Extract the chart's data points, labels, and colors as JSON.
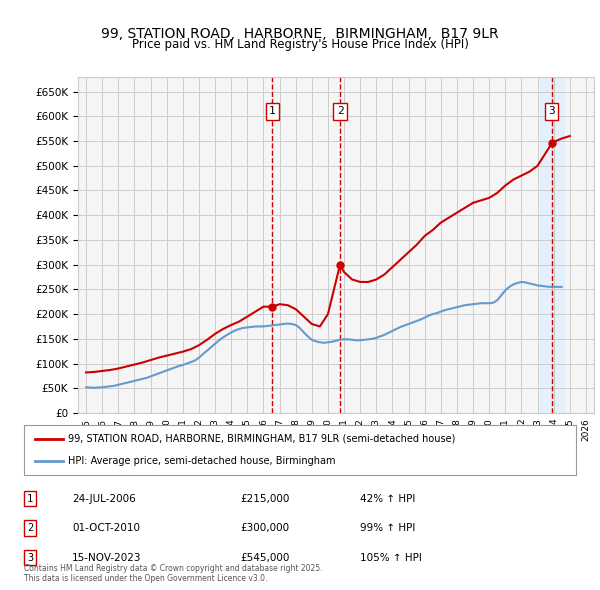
{
  "title": "99, STATION ROAD,  HARBORNE,  BIRMINGHAM,  B17 9LR",
  "subtitle": "Price paid vs. HM Land Registry's House Price Index (HPI)",
  "legend_line1": "99, STATION ROAD, HARBORNE, BIRMINGHAM, B17 9LR (semi-detached house)",
  "legend_line2": "HPI: Average price, semi-detached house, Birmingham",
  "footer": "Contains HM Land Registry data © Crown copyright and database right 2025.\nThis data is licensed under the Open Government Licence v3.0.",
  "transactions": [
    {
      "num": 1,
      "date": "24-JUL-2006",
      "price": 215000,
      "pct": "42%",
      "dir": "↑",
      "label": "HPI"
    },
    {
      "num": 2,
      "date": "01-OCT-2010",
      "price": 300000,
      "pct": "99%",
      "dir": "↑",
      "label": "HPI"
    },
    {
      "num": 3,
      "date": "15-NOV-2023",
      "price": 545000,
      "pct": "105%",
      "dir": "↑",
      "label": "HPI"
    }
  ],
  "transaction_years": [
    2006.56,
    2010.75,
    2023.88
  ],
  "transaction_prices": [
    215000,
    300000,
    545000
  ],
  "ylim": [
    0,
    680000
  ],
  "xlim": [
    1994.5,
    2026.5
  ],
  "yticks": [
    0,
    50000,
    100000,
    150000,
    200000,
    250000,
    300000,
    350000,
    400000,
    450000,
    500000,
    550000,
    600000,
    650000
  ],
  "xticks": [
    1995,
    1996,
    1997,
    1998,
    1999,
    2000,
    2001,
    2002,
    2003,
    2004,
    2005,
    2006,
    2007,
    2008,
    2009,
    2010,
    2011,
    2012,
    2013,
    2014,
    2015,
    2016,
    2017,
    2018,
    2019,
    2020,
    2021,
    2022,
    2023,
    2024,
    2025,
    2026
  ],
  "red_color": "#cc0000",
  "blue_color": "#6699cc",
  "shade_color": "#ddeeff",
  "vline_color": "#cc0000",
  "background_color": "#f5f5f5",
  "grid_color": "#cccccc",
  "hpi_data_x": [
    1995.0,
    1995.25,
    1995.5,
    1995.75,
    1996.0,
    1996.25,
    1996.5,
    1996.75,
    1997.0,
    1997.25,
    1997.5,
    1997.75,
    1998.0,
    1998.25,
    1998.5,
    1998.75,
    1999.0,
    1999.25,
    1999.5,
    1999.75,
    2000.0,
    2000.25,
    2000.5,
    2000.75,
    2001.0,
    2001.25,
    2001.5,
    2001.75,
    2002.0,
    2002.25,
    2002.5,
    2002.75,
    2003.0,
    2003.25,
    2003.5,
    2003.75,
    2004.0,
    2004.25,
    2004.5,
    2004.75,
    2005.0,
    2005.25,
    2005.5,
    2005.75,
    2006.0,
    2006.25,
    2006.5,
    2006.75,
    2007.0,
    2007.25,
    2007.5,
    2007.75,
    2008.0,
    2008.25,
    2008.5,
    2008.75,
    2009.0,
    2009.25,
    2009.5,
    2009.75,
    2010.0,
    2010.25,
    2010.5,
    2010.75,
    2011.0,
    2011.25,
    2011.5,
    2011.75,
    2012.0,
    2012.25,
    2012.5,
    2012.75,
    2013.0,
    2013.25,
    2013.5,
    2013.75,
    2014.0,
    2014.25,
    2014.5,
    2014.75,
    2015.0,
    2015.25,
    2015.5,
    2015.75,
    2016.0,
    2016.25,
    2016.5,
    2016.75,
    2017.0,
    2017.25,
    2017.5,
    2017.75,
    2018.0,
    2018.25,
    2018.5,
    2018.75,
    2019.0,
    2019.25,
    2019.5,
    2019.75,
    2020.0,
    2020.25,
    2020.5,
    2020.75,
    2021.0,
    2021.25,
    2021.5,
    2021.75,
    2022.0,
    2022.25,
    2022.5,
    2022.75,
    2023.0,
    2023.25,
    2023.5,
    2023.75,
    2024.0,
    2024.25,
    2024.5
  ],
  "hpi_data_y": [
    52000,
    51500,
    51000,
    51500,
    52000,
    53000,
    54000,
    55000,
    57000,
    59000,
    61000,
    63000,
    65000,
    67000,
    69000,
    71000,
    74000,
    77000,
    80000,
    83000,
    86000,
    89000,
    92000,
    95000,
    97000,
    100000,
    103000,
    106000,
    112000,
    119000,
    126000,
    133000,
    140000,
    147000,
    153000,
    158000,
    163000,
    167000,
    170000,
    172000,
    173000,
    174000,
    175000,
    175000,
    175000,
    176000,
    177000,
    178000,
    179000,
    180000,
    181000,
    180000,
    178000,
    172000,
    163000,
    155000,
    148000,
    145000,
    143000,
    142000,
    143000,
    144000,
    146000,
    148000,
    149000,
    149000,
    148000,
    147000,
    147000,
    148000,
    149000,
    150000,
    152000,
    155000,
    158000,
    162000,
    166000,
    170000,
    174000,
    177000,
    180000,
    183000,
    186000,
    189000,
    193000,
    197000,
    200000,
    202000,
    205000,
    208000,
    210000,
    212000,
    214000,
    216000,
    218000,
    219000,
    220000,
    221000,
    222000,
    222000,
    222000,
    223000,
    228000,
    238000,
    248000,
    255000,
    260000,
    263000,
    265000,
    264000,
    262000,
    260000,
    258000,
    257000,
    256000,
    255000,
    255000,
    255000,
    255000
  ],
  "red_data_x": [
    1995.0,
    1995.5,
    1996.0,
    1996.5,
    1997.0,
    1997.5,
    1998.0,
    1998.5,
    1999.0,
    1999.5,
    2000.0,
    2000.5,
    2001.0,
    2001.5,
    2002.0,
    2002.5,
    2003.0,
    2003.5,
    2004.0,
    2004.5,
    2005.0,
    2005.5,
    2006.0,
    2006.56,
    2007.0,
    2007.5,
    2008.0,
    2008.5,
    2009.0,
    2009.5,
    2010.0,
    2010.75,
    2011.0,
    2011.5,
    2012.0,
    2012.5,
    2013.0,
    2013.5,
    2014.0,
    2014.5,
    2015.0,
    2015.5,
    2016.0,
    2016.5,
    2017.0,
    2017.5,
    2018.0,
    2018.5,
    2019.0,
    2019.5,
    2020.0,
    2020.5,
    2021.0,
    2021.5,
    2022.0,
    2022.5,
    2023.0,
    2023.88,
    2024.0,
    2024.5,
    2025.0
  ],
  "red_data_y": [
    82000,
    83000,
    85000,
    87000,
    90000,
    94000,
    98000,
    102000,
    107000,
    112000,
    116000,
    120000,
    124000,
    129000,
    137000,
    148000,
    160000,
    170000,
    178000,
    185000,
    195000,
    205000,
    215000,
    215000,
    220000,
    218000,
    210000,
    195000,
    180000,
    175000,
    200000,
    300000,
    285000,
    270000,
    265000,
    265000,
    270000,
    280000,
    295000,
    310000,
    325000,
    340000,
    358000,
    370000,
    385000,
    395000,
    405000,
    415000,
    425000,
    430000,
    435000,
    445000,
    460000,
    472000,
    480000,
    488000,
    500000,
    545000,
    548000,
    555000,
    560000
  ]
}
